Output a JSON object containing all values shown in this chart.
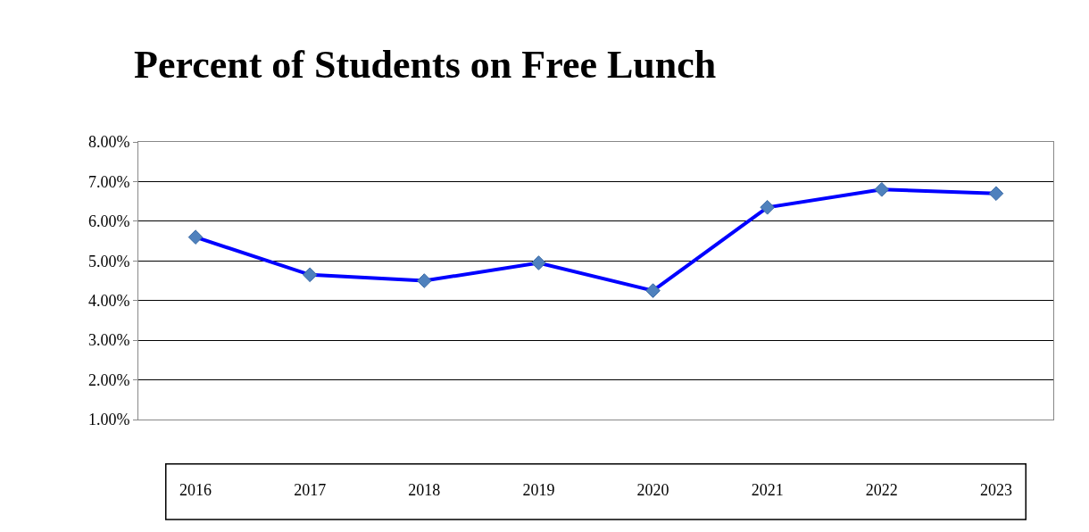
{
  "chart_data": {
    "type": "line",
    "title": "Percent of Students on Free Lunch",
    "categories": [
      "2016",
      "2017",
      "2018",
      "2019",
      "2020",
      "2021",
      "2022",
      "2023"
    ],
    "series": [
      {
        "color": "#0000ff",
        "values": [
          5.6,
          4.65,
          4.5,
          4.95,
          4.25,
          6.35,
          6.8,
          6.7
        ]
      }
    ],
    "ylim": [
      1,
      8
    ],
    "yticks": [
      {
        "value": 1,
        "label": "1.00%"
      },
      {
        "value": 2,
        "label": "2.00%"
      },
      {
        "value": 3,
        "label": "3.00%"
      },
      {
        "value": 4,
        "label": "4.00%"
      },
      {
        "value": 5,
        "label": "5.00%"
      },
      {
        "value": 6,
        "label": "6.00%"
      },
      {
        "value": 7,
        "label": "7.00%"
      },
      {
        "value": 8,
        "label": "8.00%"
      }
    ],
    "grid": "y",
    "marker": "diamond",
    "line_style": "solid"
  }
}
